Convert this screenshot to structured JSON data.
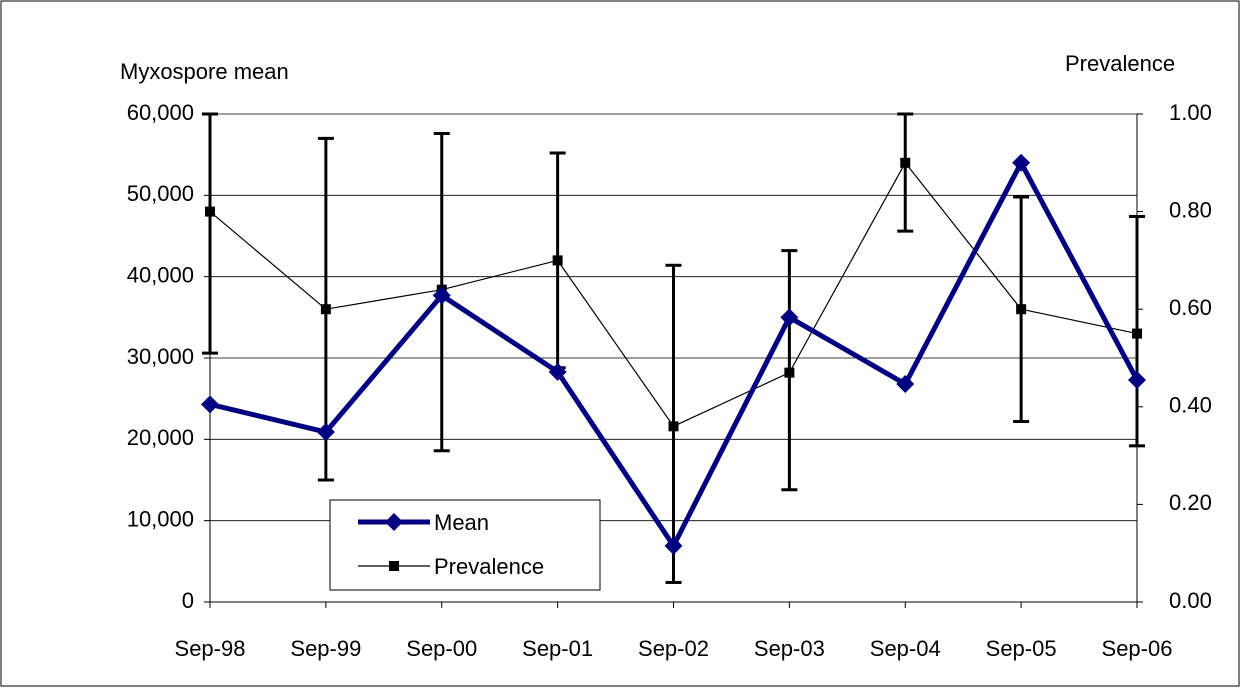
{
  "chart_data": {
    "type": "line",
    "y_axis_label": "Myxospore mean",
    "y2_axis_label": "Prevalence",
    "categories": [
      "Sep-98",
      "Sep-99",
      "Sep-00",
      "Sep-01",
      "Sep-02",
      "Sep-03",
      "Sep-04",
      "Sep-05",
      "Sep-06"
    ],
    "ylim": [
      0,
      60000
    ],
    "yticks": [
      0,
      {
        "value": 10000,
        "label": "10,000"
      },
      {
        "value": 20000,
        "label": "20,000"
      },
      {
        "value": 30000,
        "label": "30,000"
      },
      {
        "value": 40000,
        "label": "40,000"
      },
      {
        "value": 50000,
        "label": "50,000"
      },
      {
        "value": 60000,
        "label": "60,000"
      }
    ],
    "y2lim": [
      0,
      1
    ],
    "y2ticks": [
      {
        "value": 0,
        "label": "0.00"
      },
      {
        "value": 0.2,
        "label": "0.20"
      },
      {
        "value": 0.4,
        "label": "0.40"
      },
      {
        "value": 0.6,
        "label": "0.60"
      },
      {
        "value": 0.8,
        "label": "0.80"
      },
      {
        "value": 1,
        "label": "1.00"
      }
    ],
    "grid": true,
    "legend_position": "bottom-left",
    "series": [
      {
        "name": "Mean",
        "color": "#000080",
        "marker": "diamond",
        "values": [
          24300,
          20900,
          37700,
          28300,
          6900,
          35000,
          26800,
          54000,
          27300
        ]
      },
      {
        "name": "Prevalence",
        "color": "#000000",
        "marker": "square",
        "axis": "y2",
        "values": [
          0.8,
          0.6,
          0.64,
          0.7,
          0.36,
          0.47,
          0.9,
          0.6,
          0.55
        ],
        "error_lower": [
          0.51,
          0.25,
          0.31,
          0.48,
          0.04,
          0.23,
          0.76,
          0.37,
          0.32
        ],
        "error_upper": [
          1.0,
          0.95,
          0.96,
          0.92,
          0.69,
          0.72,
          1.0,
          0.83,
          0.79
        ]
      }
    ]
  }
}
